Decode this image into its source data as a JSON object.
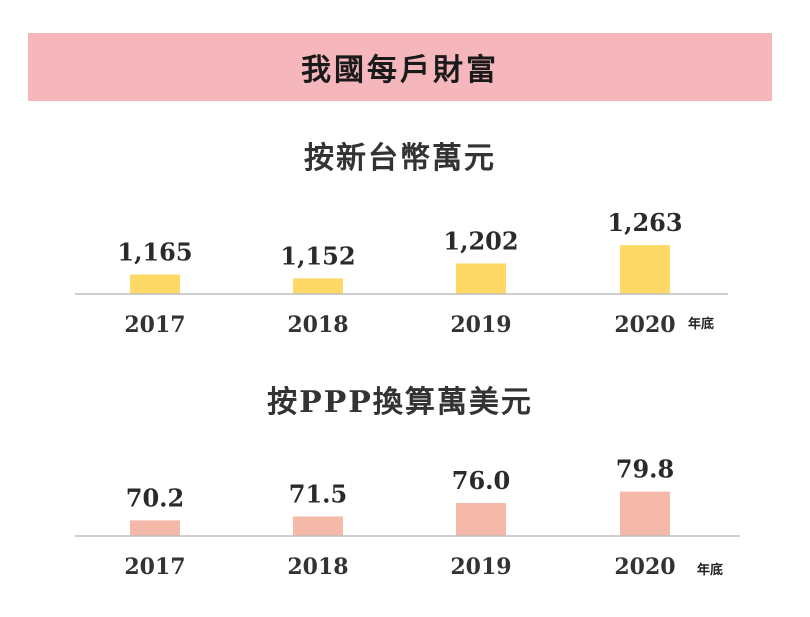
{
  "header": {
    "title": "我國每戶財富"
  },
  "colors": {
    "banner": "#f5b7bc",
    "series1": "#ffd966",
    "series2": "#f4b9a8"
  },
  "chart_data": [
    {
      "type": "bar",
      "title": "按新台幣萬元",
      "categories": [
        "2017",
        "2018",
        "2019",
        "2020"
      ],
      "values": [
        1165,
        1152,
        1202,
        1263
      ],
      "value_labels": [
        "1,165",
        "1,152",
        "1,202",
        "1,263"
      ],
      "xlabel": "年底",
      "ylabel": "",
      "ylim": [
        1100,
        1300
      ],
      "color": "#ffd966",
      "grid": false
    },
    {
      "type": "bar",
      "title": "按PPP換算萬美元",
      "categories": [
        "2017",
        "2018",
        "2019",
        "2020"
      ],
      "values": [
        70.2,
        71.5,
        76.0,
        79.8
      ],
      "value_labels": [
        "70.2",
        "71.5",
        "76.0",
        "79.8"
      ],
      "xlabel": "年底",
      "ylabel": "",
      "ylim": [
        65,
        85
      ],
      "color": "#f4b9a8",
      "grid": false
    }
  ]
}
